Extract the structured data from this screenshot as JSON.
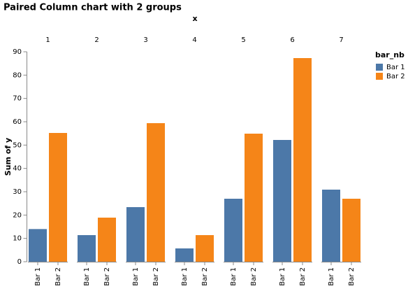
{
  "chart_data": {
    "type": "bar",
    "title": "Paired Column chart with 2 groups",
    "facet_title": "x",
    "facets": [
      "1",
      "2",
      "3",
      "4",
      "5",
      "6",
      "7"
    ],
    "y_title": "Sum of y",
    "legend_title": "bar_nb",
    "legend_position": "top-right",
    "ylim": [
      0,
      90
    ],
    "yticks": [
      0,
      10,
      20,
      30,
      40,
      50,
      60,
      70,
      80,
      90
    ],
    "grid": false,
    "series": [
      {
        "name": "Bar 1",
        "color": "#4c78a8",
        "values": [
          14,
          11.4,
          23.4,
          5.7,
          27,
          52.2,
          30.9
        ]
      },
      {
        "name": "Bar 2",
        "color": "#f58518",
        "values": [
          55.2,
          18.9,
          59.4,
          11.4,
          54.9,
          87.3,
          27
        ]
      }
    ]
  }
}
